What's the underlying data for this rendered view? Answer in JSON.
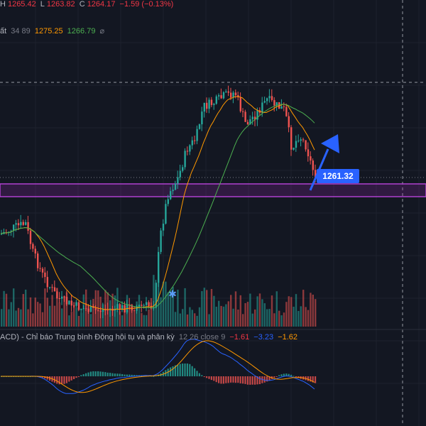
{
  "ohlc": {
    "high_label": "H",
    "high_value": "1265.42",
    "low_label": "L",
    "low_value": "1263.82",
    "close_label": "C",
    "close_value": "1264.17",
    "change": "−1.59 (−0.13%)"
  },
  "ma_row": {
    "label": "ất",
    "params": "34 89",
    "value_1": "1275.25",
    "value_2": "1266.79",
    "hide_icon": "eye-off-icon"
  },
  "price_label": "1261.32",
  "macd": {
    "title": "ACD) - Chỉ báo Trung bình Động hội tụ và phân kỳ",
    "params": "12 26 close 9",
    "histogram_value": "−1.61",
    "macd_value": "−3.23",
    "signal_value": "−1.62"
  },
  "colors": {
    "background": "#131722",
    "up_candle": "#26a69a",
    "down_candle": "#ef5350",
    "ma_fast": "#ff9800",
    "ma_slow": "#4caf50",
    "zone": "#9c27b0",
    "arrow": "#2962ff",
    "macd_line": "#2962ff",
    "signal_line": "#ff9800"
  }
}
